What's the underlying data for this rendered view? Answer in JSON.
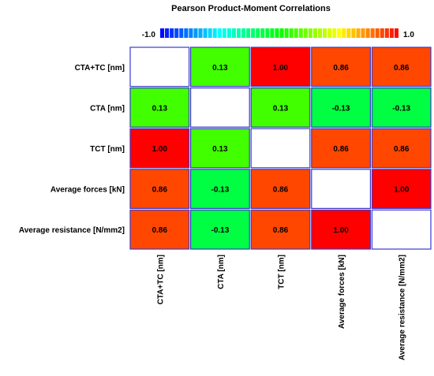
{
  "chart_data": {
    "type": "heatmap",
    "title": "Pearson Product-Moment Correlations",
    "row_labels": [
      "CTA+TC [nm]",
      "CTA [nm]",
      "TCT [nm]",
      "Average forces [kN]",
      "Average resistance [N/mm2]"
    ],
    "col_labels": [
      "CTA+TC [nm]",
      "CTA [nm]",
      "TCT [nm]",
      "Average forces [kN]",
      "Average resistance [N/mm2]"
    ],
    "values": [
      [
        null,
        0.13,
        1.0,
        0.86,
        0.86
      ],
      [
        0.13,
        null,
        0.13,
        -0.13,
        -0.13
      ],
      [
        1.0,
        0.13,
        null,
        0.86,
        0.86
      ],
      [
        0.86,
        -0.13,
        0.86,
        null,
        1.0
      ],
      [
        0.86,
        -0.13,
        0.86,
        1.0,
        null
      ]
    ],
    "value_labels": [
      [
        "",
        "0.13",
        "1.00",
        "0.86",
        "0.86"
      ],
      [
        "0.13",
        "",
        "0.13",
        "-0.13",
        "-0.13"
      ],
      [
        "1.00",
        "0.13",
        "",
        "0.86",
        "0.86"
      ],
      [
        "0.86",
        "-0.13",
        "0.86",
        "",
        "1.00"
      ],
      [
        "0.86",
        "-0.13",
        "0.86",
        "1.00",
        ""
      ]
    ],
    "colorbar": {
      "min": -1.0,
      "max": 1.0,
      "min_label": "-1.0",
      "max_label": "1.0"
    },
    "colors": {
      "cell_border": "#3a3ad0",
      "diagonal": "#ffffff",
      "gradient": [
        "#0000ff",
        "#00ffff",
        "#00ff00",
        "#ffff00",
        "#ff0000"
      ]
    }
  }
}
